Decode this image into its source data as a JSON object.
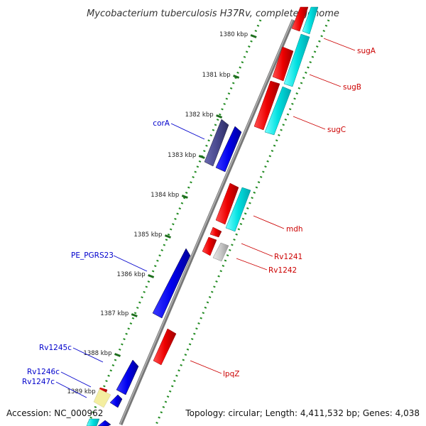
{
  "title": "Mycobacterium tuberculosis H37Rv, complete genome",
  "footer": {
    "accession": "Accession: NC_000962",
    "summary": "Topology: circular; Length: 4,411,532 bp; Genes: 4,038"
  },
  "ticks": [
    "1380 kbp",
    "1381 kbp",
    "1382 kbp",
    "1383 kbp",
    "1384 kbp",
    "1385 kbp",
    "1386 kbp",
    "1387 kbp",
    "1388 kbp",
    "1389 kbp"
  ],
  "labels": {
    "forward": [
      "corA",
      "PE_PGRS23",
      "Rv1245c",
      "Rv1246c",
      "Rv1247c"
    ],
    "reverse": [
      "sugA",
      "sugB",
      "sugC",
      "mdh",
      "Rv1241",
      "Rv1242",
      "lpqZ"
    ]
  },
  "colors": {
    "forward_label": "#0000cc",
    "reverse_label": "#cc0000",
    "tick_marks": "#228b22",
    "backbone": "#888888"
  }
}
